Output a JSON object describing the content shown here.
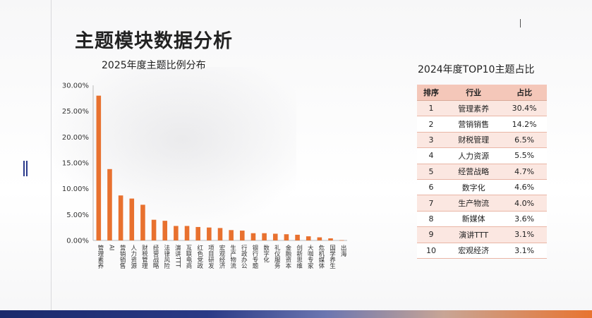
{
  "title": "主题模块数据分析",
  "chart_data": {
    "type": "bar",
    "title": "2025年度主题比例分布",
    "ylim": [
      0,
      30
    ],
    "yticks": [
      "0.00%",
      "5.00%",
      "10.00%",
      "15.00%",
      "20.00%",
      "25.00%",
      "30.00%"
    ],
    "categories": [
      "管理素养",
      "AI",
      "营销销售",
      "人力资源",
      "财税管理",
      "经营战略",
      "法律风险",
      "演讲TTT",
      "互联电商",
      "红色党政",
      "项目研发",
      "宏观经济",
      "生产物流",
      "行政办公",
      "银行专题",
      "数字化",
      "礼仪服务",
      "金融资本",
      "创新思维",
      "大咖专家",
      "危机媒体",
      "国学养生",
      "出海"
    ],
    "values": [
      28.0,
      13.8,
      8.7,
      8.1,
      6.9,
      4.0,
      3.8,
      2.8,
      2.8,
      2.6,
      2.5,
      2.4,
      2.0,
      1.9,
      1.4,
      1.4,
      1.3,
      1.2,
      1.1,
      0.8,
      0.6,
      0.4,
      0.05
    ],
    "bar_color": "#e8712f",
    "grid": false
  },
  "table": {
    "title": "2024年度TOP10主题占比",
    "headers": [
      "排序",
      "行业",
      "占比"
    ],
    "rows": [
      [
        "1",
        "管理素养",
        "30.4%"
      ],
      [
        "2",
        "营销销售",
        "14.2%"
      ],
      [
        "3",
        "财税管理",
        "6.5%"
      ],
      [
        "4",
        "人力资源",
        "5.5%"
      ],
      [
        "5",
        "经营战略",
        "4.7%"
      ],
      [
        "6",
        "数字化",
        "4.6%"
      ],
      [
        "7",
        "生产物流",
        "4.0%"
      ],
      [
        "8",
        "新媒体",
        "3.6%"
      ],
      [
        "9",
        "演讲TTT",
        "3.1%"
      ],
      [
        "10",
        "宏观经济",
        "3.1%"
      ]
    ]
  }
}
